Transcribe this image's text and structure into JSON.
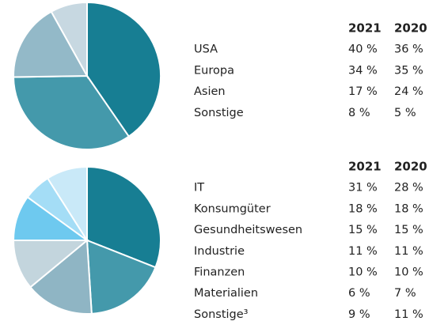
{
  "chart_data": [
    {
      "type": "pie",
      "categories": [
        "USA",
        "Europa",
        "Asien",
        "Sonstige"
      ],
      "colors": [
        "#177e93",
        "#4499ab",
        "#93b9c8",
        "#c7d8e1"
      ],
      "series": [
        {
          "name": "2021",
          "values": [
            40,
            34,
            17,
            8
          ],
          "value_labels": [
            "40 %",
            "34 %",
            "17 %",
            "8 %"
          ]
        },
        {
          "name": "2020",
          "values": [
            36,
            35,
            24,
            5
          ],
          "value_labels": [
            "36 %",
            "35 %",
            "24 %",
            "5 %"
          ]
        }
      ]
    },
    {
      "type": "pie",
      "categories": [
        "IT",
        "Konsumgüter",
        "Gesundheitswesen",
        "Industrie",
        "Finanzen",
        "Materialien",
        "Sonstige³"
      ],
      "colors": [
        "#177e93",
        "#4499ab",
        "#8fb5c4",
        "#c3d5dd",
        "#6ec9ef",
        "#a4ddf6",
        "#c9e9f8"
      ],
      "series": [
        {
          "name": "2021",
          "values": [
            31,
            18,
            15,
            11,
            10,
            6,
            9
          ],
          "value_labels": [
            "31 %",
            "18 %",
            "15 %",
            "11 %",
            "10 %",
            "6 %",
            "9 %"
          ]
        },
        {
          "name": "2020",
          "values": [
            28,
            18,
            15,
            11,
            10,
            7,
            11
          ],
          "value_labels": [
            "28 %",
            "18 %",
            "15 %",
            "11 %",
            "10 %",
            "7 %",
            "11 %"
          ]
        }
      ]
    }
  ]
}
